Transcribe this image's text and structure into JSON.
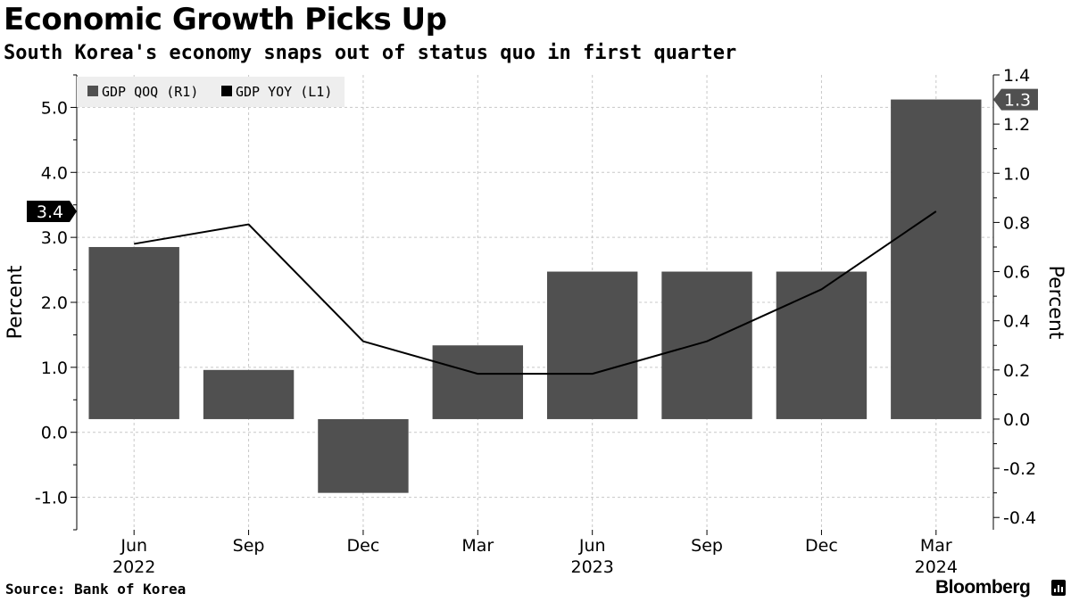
{
  "title": "Economic Growth Picks Up",
  "subtitle": "South Korea's economy snaps out of status quo in first quarter",
  "source": "Source: Bank of Korea",
  "brand": "Bloomberg",
  "colors": {
    "bar": "#505050",
    "line": "#000000",
    "grid": "#c8c8c8",
    "legend_bg": "#eeeeee"
  },
  "chart_data": {
    "type": "bar+line",
    "categories": [
      "Jun",
      "Sep",
      "Dec",
      "Mar",
      "Jun",
      "Sep",
      "Dec",
      "Mar"
    ],
    "year_labels": [
      "2022",
      "",
      "",
      "",
      "2023",
      "",
      "",
      "2024"
    ],
    "series": [
      {
        "name": "GDP QOQ (R1)",
        "type": "bar",
        "axis": "right",
        "values": [
          0.7,
          0.2,
          -0.3,
          0.3,
          0.6,
          0.6,
          0.6,
          1.3
        ]
      },
      {
        "name": "GDP YOY (L1)",
        "type": "line",
        "axis": "left",
        "values": [
          2.9,
          3.2,
          1.4,
          0.9,
          0.9,
          1.4,
          2.2,
          3.4
        ]
      }
    ],
    "left_axis": {
      "label": "Percent",
      "min": -1.5,
      "max": 5.5,
      "ticks": [
        -1.0,
        0.0,
        1.0,
        2.0,
        3.0,
        4.0,
        5.0
      ],
      "tick_labels": [
        "-1.0",
        "0.0",
        "1.0",
        "2.0",
        "3.0",
        "4.0",
        "5.0"
      ]
    },
    "right_axis": {
      "label": "Percent",
      "min": -0.45,
      "max": 1.4,
      "ticks": [
        -0.4,
        -0.2,
        0.0,
        0.2,
        0.4,
        0.6,
        0.8,
        1.0,
        1.2,
        1.4
      ],
      "tick_labels": [
        "-0.4",
        "-0.2",
        "0.0",
        "0.2",
        "0.4",
        "0.6",
        "0.8",
        "1.0",
        "1.2",
        "1.4"
      ]
    },
    "callouts": {
      "line_last": "3.4",
      "bar_last": "1.3"
    },
    "legend": {
      "placement": "top-left"
    }
  }
}
